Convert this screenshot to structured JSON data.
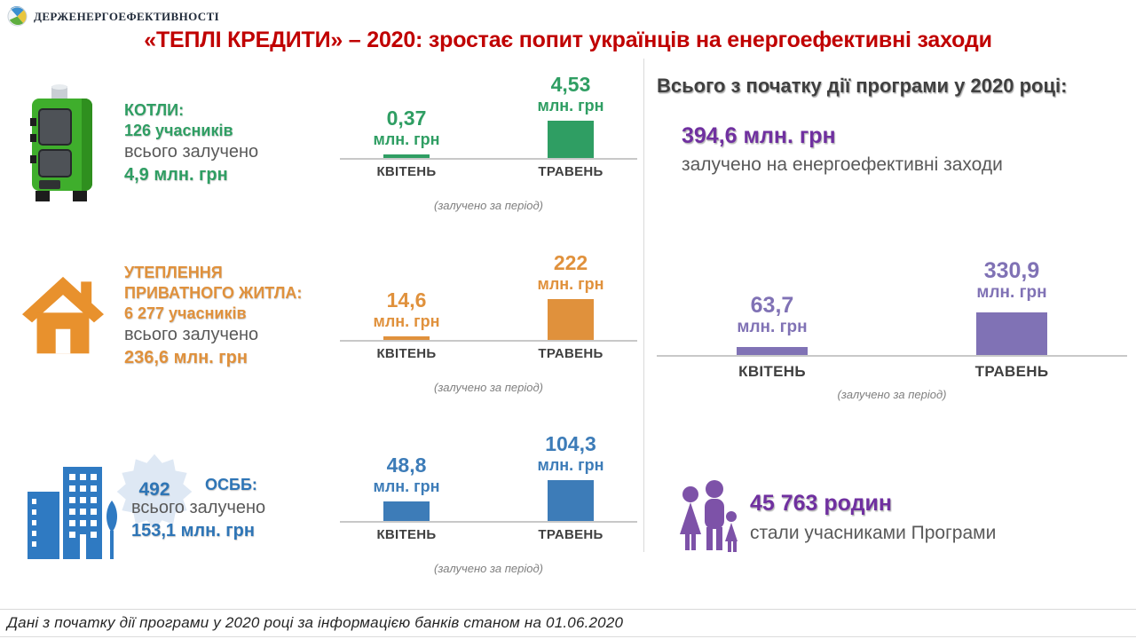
{
  "header": {
    "brand": "ДЕРЖЕНЕРГОЕФЕКТИВНОСТІ",
    "title": "«ТЕПЛІ КРЕДИТИ» – 2020: зростає попит українців на енергоефективні заходи",
    "title_color": "#c00000"
  },
  "sections": [
    {
      "icon": "boiler-icon",
      "color": "#2f9e63",
      "lines": [
        "КОТЛИ:",
        "126 учасників"
      ],
      "sub_label": "всього залучено",
      "total": "4,9 млн. грн"
    },
    {
      "icon": "house-icon",
      "color": "#e0913c",
      "lines": [
        "УТЕПЛЕННЯ",
        "ПРИВАТНОГО ЖИТЛА:",
        "6 277 учасників"
      ],
      "sub_label": "всього залучено",
      "total": "236,6 млн. грн"
    },
    {
      "icon": "buildings-icon",
      "color": "#2e75b6",
      "badge": "492",
      "lines": [
        "ОСББ:"
      ],
      "sub_label": "всього залучено",
      "total": "153,1 млн. грн"
    }
  ],
  "chart_data": [
    {
      "type": "bar",
      "group": "КОТЛИ",
      "categories": [
        "КВІТЕНЬ",
        "ТРАВЕНЬ"
      ],
      "values": [
        0.37,
        4.53
      ],
      "value_labels": [
        "0,37",
        "4,53"
      ],
      "unit": "млн. грн",
      "caption": "(залучено за період)",
      "color": "#2f9e63",
      "ylim": [
        0,
        5
      ],
      "grid": false,
      "legend": "none"
    },
    {
      "type": "bar",
      "group": "УТЕПЛЕННЯ ПРИВАТНОГО ЖИТЛА",
      "categories": [
        "КВІТЕНЬ",
        "ТРАВЕНЬ"
      ],
      "values": [
        14.6,
        222
      ],
      "value_labels": [
        "14,6",
        "222"
      ],
      "unit": "млн. грн",
      "caption": "(залучено за період)",
      "color": "#e0913c",
      "ylim": [
        0,
        230
      ],
      "grid": false,
      "legend": "none"
    },
    {
      "type": "bar",
      "group": "ОСББ",
      "categories": [
        "КВІТЕНЬ",
        "ТРАВЕНЬ"
      ],
      "values": [
        48.8,
        104.3
      ],
      "value_labels": [
        "48,8",
        "104,3"
      ],
      "unit": "млн. грн",
      "caption": "(залучено за період)",
      "color": "#3d7cb8",
      "ylim": [
        0,
        110
      ],
      "grid": false,
      "legend": "none"
    },
    {
      "type": "bar",
      "group": "ВСЬОГО З ПОЧАТКУ ДІЇ ПРОГРАМИ",
      "categories": [
        "КВІТЕНЬ",
        "ТРАВЕНЬ"
      ],
      "values": [
        63.7,
        330.9
      ],
      "value_labels": [
        "63,7",
        "330,9"
      ],
      "unit": "млн. грн",
      "caption": "(залучено за період)",
      "color": "#8072b5",
      "ylim": [
        0,
        340
      ],
      "grid": false,
      "legend": "none"
    }
  ],
  "summary": {
    "heading": "Всього з початку дії програми у 2020 році:",
    "total_value": "394,6 млн. грн",
    "total_label": "залучено на енергоефективні заходи",
    "families_value": "45 763 родин",
    "families_label": "стали учасниками Програми",
    "accent_color": "#7030a0"
  },
  "footer": {
    "note": "Дані з початку дії програми у 2020 році за інформацією банків станом на 01.06.2020"
  }
}
